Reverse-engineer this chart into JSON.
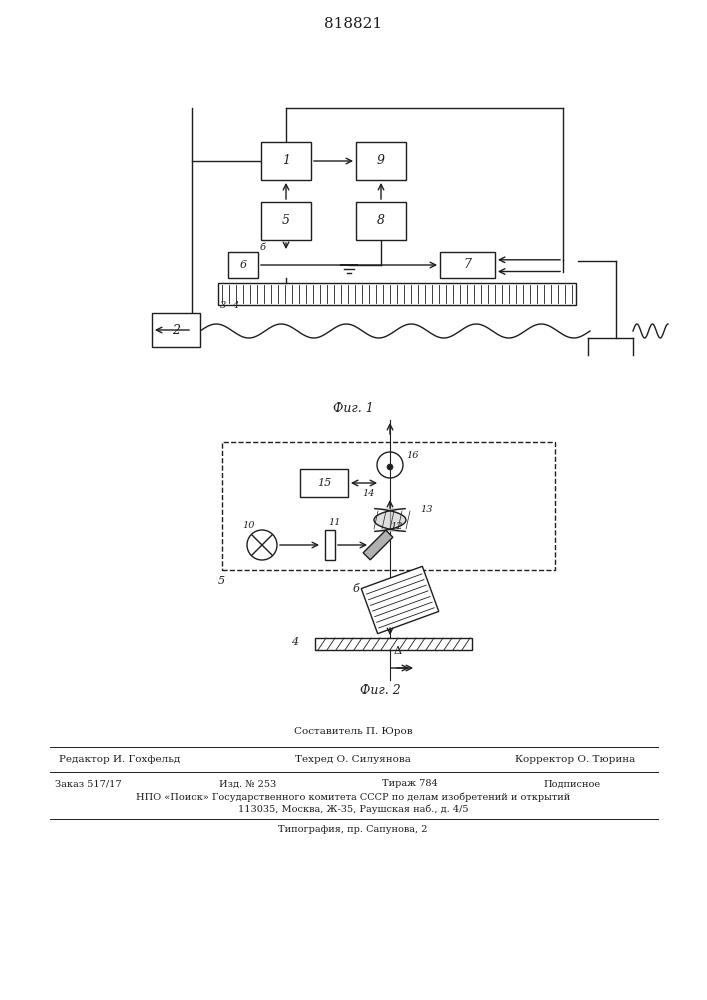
{
  "title": "818821",
  "fig1_caption": "Фиг. 1",
  "fig2_caption": "Фиг. 2",
  "footer_composer": "Составитель П. Юров",
  "footer_editor": "Редактор И. Гохфельд",
  "footer_techred": "Техред О. Силуянова",
  "footer_corrector": "Корректор О. Тюрина",
  "footer_order": "Заказ 517/17",
  "footer_edition": "Изд. № 253",
  "footer_print": "Тираж 784",
  "footer_subscription": "Подписное",
  "footer_npo": "НПО «Поиск» Государственного комитета СССР по делам изобретений и открытий",
  "footer_address": "113035, Москва, Ж-35, Раушская наб., д. 4/5",
  "footer_typography": "Типография, пр. Сапунова, 2",
  "line_color": "#1e1e1e"
}
